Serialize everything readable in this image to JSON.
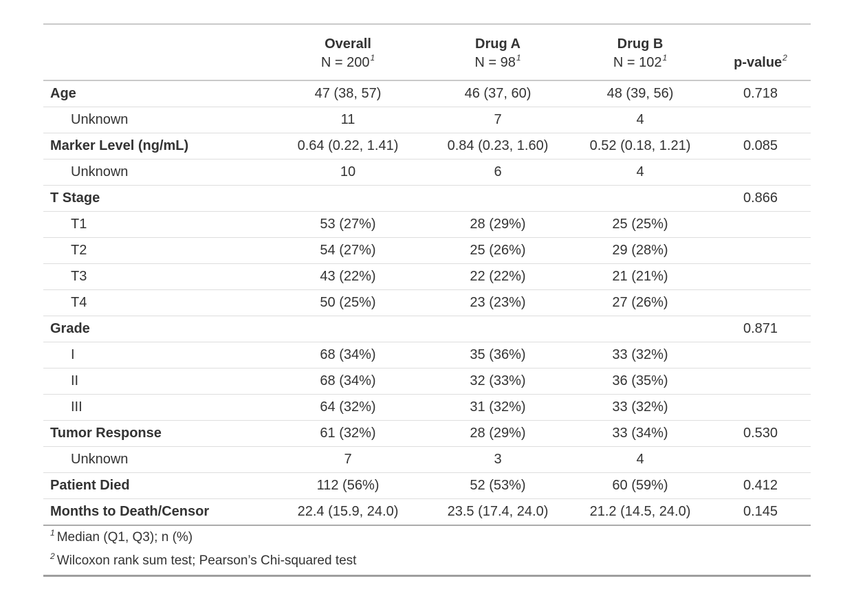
{
  "table": {
    "columns": [
      {
        "label": "",
        "sub": "",
        "footnote_ref": ""
      },
      {
        "label": "Overall",
        "sub": "N = 200",
        "footnote_ref": "1"
      },
      {
        "label": "Drug A",
        "sub": "N = 98",
        "footnote_ref": "1"
      },
      {
        "label": "Drug B",
        "sub": "N = 102",
        "footnote_ref": "1"
      },
      {
        "label": "p-value",
        "sub": "",
        "footnote_ref": "2"
      }
    ],
    "rows": [
      {
        "label": "Age",
        "indent": false,
        "bold": true,
        "values": [
          "47 (38, 57)",
          "46 (37, 60)",
          "48 (39, 56)",
          "0.718"
        ]
      },
      {
        "label": "Unknown",
        "indent": true,
        "bold": false,
        "values": [
          "11",
          "7",
          "4",
          ""
        ]
      },
      {
        "label": "Marker Level (ng/mL)",
        "indent": false,
        "bold": true,
        "values": [
          "0.64 (0.22, 1.41)",
          "0.84 (0.23, 1.60)",
          "0.52 (0.18, 1.21)",
          "0.085"
        ]
      },
      {
        "label": "Unknown",
        "indent": true,
        "bold": false,
        "values": [
          "10",
          "6",
          "4",
          ""
        ]
      },
      {
        "label": "T Stage",
        "indent": false,
        "bold": true,
        "values": [
          "",
          "",
          "",
          "0.866"
        ]
      },
      {
        "label": "T1",
        "indent": true,
        "bold": false,
        "values": [
          "53 (27%)",
          "28 (29%)",
          "25 (25%)",
          ""
        ]
      },
      {
        "label": "T2",
        "indent": true,
        "bold": false,
        "values": [
          "54 (27%)",
          "25 (26%)",
          "29 (28%)",
          ""
        ]
      },
      {
        "label": "T3",
        "indent": true,
        "bold": false,
        "values": [
          "43 (22%)",
          "22 (22%)",
          "21 (21%)",
          ""
        ]
      },
      {
        "label": "T4",
        "indent": true,
        "bold": false,
        "values": [
          "50 (25%)",
          "23 (23%)",
          "27 (26%)",
          ""
        ]
      },
      {
        "label": "Grade",
        "indent": false,
        "bold": true,
        "values": [
          "",
          "",
          "",
          "0.871"
        ]
      },
      {
        "label": "I",
        "indent": true,
        "bold": false,
        "values": [
          "68 (34%)",
          "35 (36%)",
          "33 (32%)",
          ""
        ]
      },
      {
        "label": "II",
        "indent": true,
        "bold": false,
        "values": [
          "68 (34%)",
          "32 (33%)",
          "36 (35%)",
          ""
        ]
      },
      {
        "label": "III",
        "indent": true,
        "bold": false,
        "values": [
          "64 (32%)",
          "31 (32%)",
          "33 (32%)",
          ""
        ]
      },
      {
        "label": "Tumor Response",
        "indent": false,
        "bold": true,
        "values": [
          "61 (32%)",
          "28 (29%)",
          "33 (34%)",
          "0.530"
        ]
      },
      {
        "label": "Unknown",
        "indent": true,
        "bold": false,
        "values": [
          "7",
          "3",
          "4",
          ""
        ]
      },
      {
        "label": "Patient Died",
        "indent": false,
        "bold": true,
        "values": [
          "112 (56%)",
          "52 (53%)",
          "60 (59%)",
          "0.412"
        ]
      },
      {
        "label": "Months to Death/Censor",
        "indent": false,
        "bold": true,
        "values": [
          "22.4 (15.9, 24.0)",
          "23.5 (17.4, 24.0)",
          "21.2 (14.5, 24.0)",
          "0.145"
        ]
      }
    ],
    "footnotes": [
      {
        "marker": "1",
        "text": "Median (Q1, Q3); n (%)"
      },
      {
        "marker": "2",
        "text": "Wilcoxon rank sum test; Pearson’s Chi-squared test"
      }
    ]
  },
  "colors": {
    "text": "#333333",
    "border_light": "#dedede",
    "border_medium": "#c9c9c9",
    "border_footnote_sep": "#ababab",
    "border_bottom": "#9e9e9e",
    "background": "#ffffff"
  }
}
